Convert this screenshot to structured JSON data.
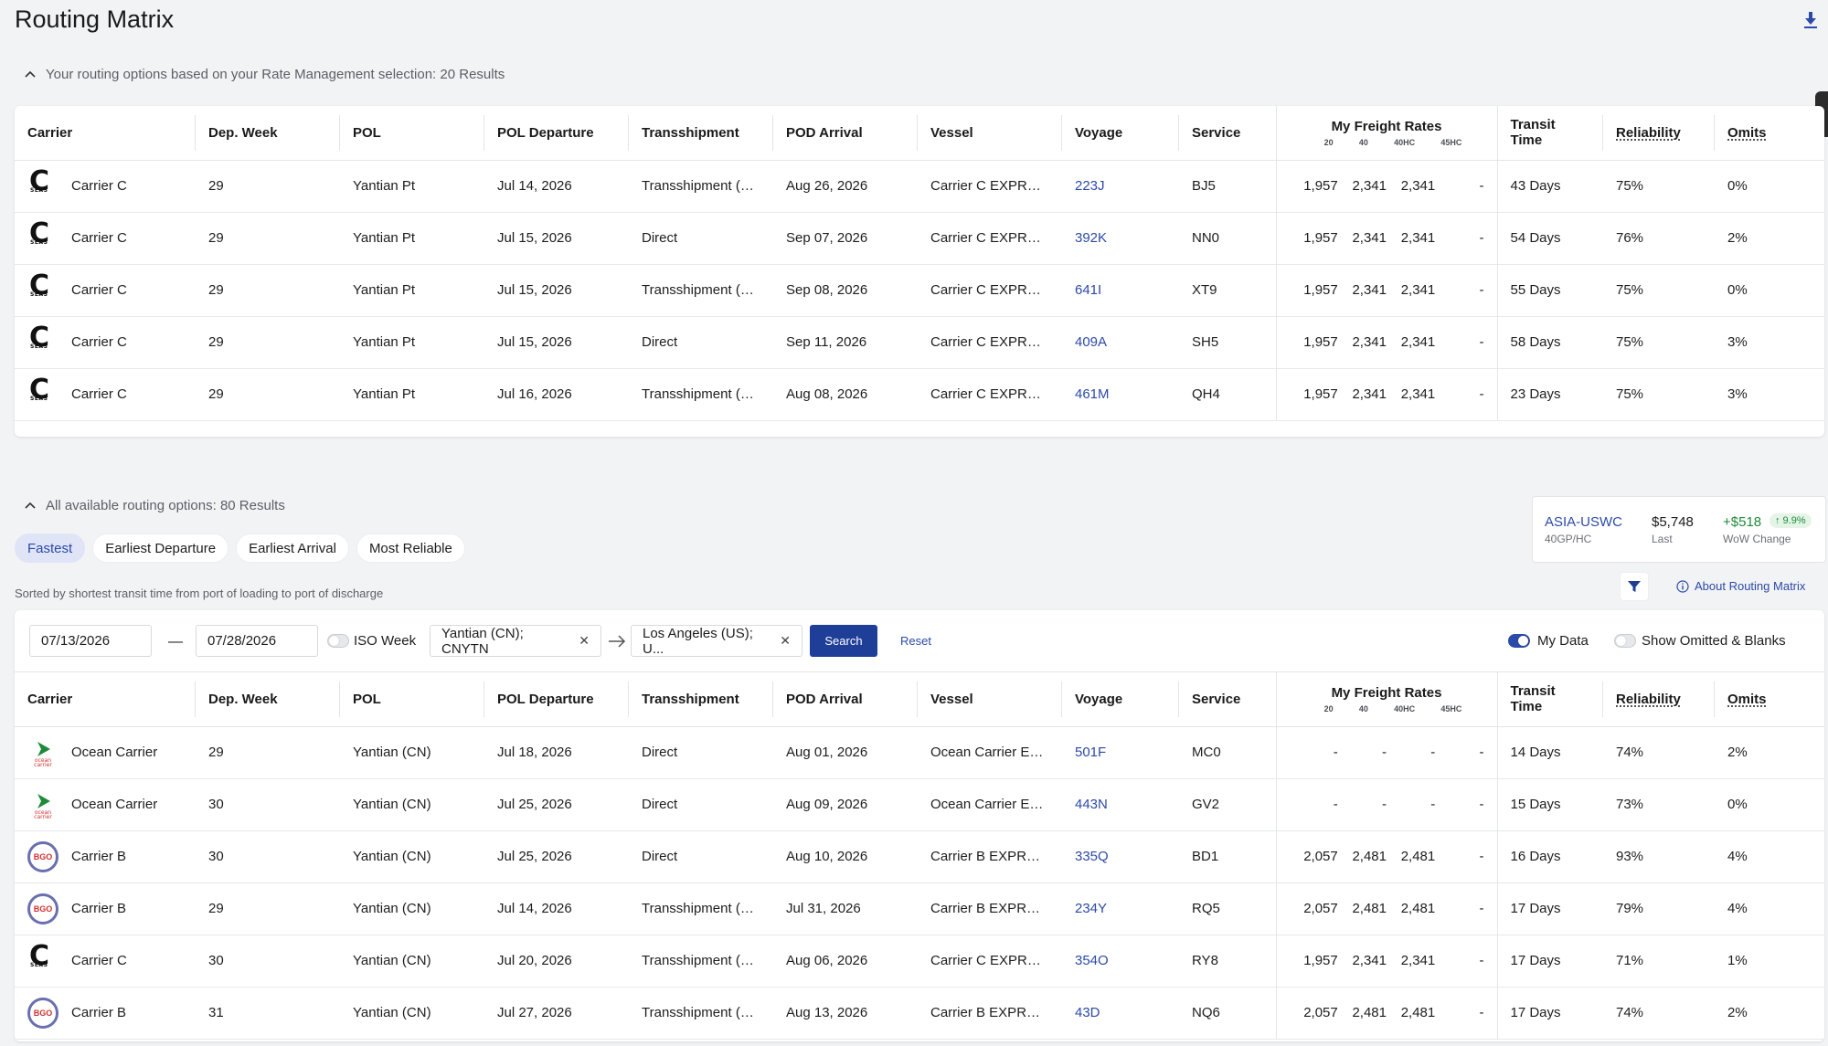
{
  "page_title": "Routing Matrix",
  "section1": {
    "summary": "Your routing options based on your Rate Management selection: 20 Results"
  },
  "section2": {
    "summary": "All available routing options: 80 Results"
  },
  "columns": {
    "carrier": "Carrier",
    "dep_week": "Dep. Week",
    "pol": "POL",
    "pol_departure": "POL Departure",
    "transshipment": "Transshipment",
    "pod_arrival": "POD Arrival",
    "vessel": "Vessel",
    "voyage": "Voyage",
    "service": "Service",
    "rates": "My Freight Rates",
    "rate_20": "20",
    "rate_40": "40",
    "rate_40hc": "40HC",
    "rate_45hc": "45HC",
    "transit_time": "Transit Time",
    "reliability": "Reliability",
    "omits": "Omits"
  },
  "table1_rows": [
    {
      "logo": "c-seas-logo",
      "carrier": "Carrier C",
      "dep_week": "29",
      "pol": "Yantian Pt",
      "pol_departure": "Jul 14, 2026",
      "transshipment": "Transshipment (T/...",
      "pod_arrival": "Aug 26, 2026",
      "vessel": "Carrier C EXPRESS",
      "voyage": "223J",
      "service": "BJ5",
      "r20": "1,957",
      "r40": "2,341",
      "r40hc": "2,341",
      "r45hc": "-",
      "transit": "43 Days",
      "reliability": "75%",
      "omits": "0%"
    },
    {
      "logo": "c-seas-logo",
      "carrier": "Carrier C",
      "dep_week": "29",
      "pol": "Yantian Pt",
      "pol_departure": "Jul 15, 2026",
      "transshipment": "Direct",
      "pod_arrival": "Sep 07, 2026",
      "vessel": "Carrier C EXPRESS",
      "voyage": "392K",
      "service": "NN0",
      "r20": "1,957",
      "r40": "2,341",
      "r40hc": "2,341",
      "r45hc": "-",
      "transit": "54 Days",
      "reliability": "76%",
      "omits": "2%"
    },
    {
      "logo": "c-seas-logo",
      "carrier": "Carrier C",
      "dep_week": "29",
      "pol": "Yantian Pt",
      "pol_departure": "Jul 15, 2026",
      "transshipment": "Transshipment (T/...",
      "pod_arrival": "Sep 08, 2026",
      "vessel": "Carrier C EXPRESS",
      "voyage": "641I",
      "service": "XT9",
      "r20": "1,957",
      "r40": "2,341",
      "r40hc": "2,341",
      "r45hc": "-",
      "transit": "55 Days",
      "reliability": "75%",
      "omits": "0%"
    },
    {
      "logo": "c-seas-logo",
      "carrier": "Carrier C",
      "dep_week": "29",
      "pol": "Yantian Pt",
      "pol_departure": "Jul 15, 2026",
      "transshipment": "Direct",
      "pod_arrival": "Sep 11, 2026",
      "vessel": "Carrier C EXPRESS",
      "voyage": "409A",
      "service": "SH5",
      "r20": "1,957",
      "r40": "2,341",
      "r40hc": "2,341",
      "r45hc": "-",
      "transit": "58 Days",
      "reliability": "75%",
      "omits": "3%"
    },
    {
      "logo": "c-seas-logo",
      "carrier": "Carrier C",
      "dep_week": "29",
      "pol": "Yantian Pt",
      "pol_departure": "Jul 16, 2026",
      "transshipment": "Transshipment (T/...",
      "pod_arrival": "Aug 08, 2026",
      "vessel": "Carrier C EXPRESS",
      "voyage": "461M",
      "service": "QH4",
      "r20": "1,957",
      "r40": "2,341",
      "r40hc": "2,341",
      "r45hc": "-",
      "transit": "23 Days",
      "reliability": "75%",
      "omits": "3%"
    }
  ],
  "tabs": [
    "Fastest",
    "Earliest Departure",
    "Earliest Arrival",
    "Most Reliable"
  ],
  "sorted_note": "Sorted by shortest transit time from port of loading to port of discharge",
  "market": {
    "lane": "ASIA-USWC",
    "lane_sub": "40GP/HC",
    "last": "$5,748",
    "last_sub": "Last",
    "change": "+$518",
    "change_pct": "↑ 9.9%",
    "change_sub": "WoW Change"
  },
  "about_link": "About Routing Matrix",
  "search": {
    "date_from": "07/13/2026",
    "date_to": "07/28/2026",
    "dash": "—",
    "iso_week": "ISO Week",
    "origin": "Yantian (CN); CNYTN",
    "destination": "Los Angeles (US); U...",
    "search_btn": "Search",
    "reset": "Reset",
    "my_data": "My Data",
    "show_omitted": "Show Omitted & Blanks"
  },
  "table2_rows": [
    {
      "logo": "ocean-carrier-logo",
      "carrier": "Ocean Carrier",
      "dep_week": "29",
      "pol": "Yantian (CN)",
      "pol_departure": "Jul 18, 2026",
      "transshipment": "Direct",
      "pod_arrival": "Aug 01, 2026",
      "vessel": "Ocean Carrier EXP...",
      "voyage": "501F",
      "service": "MC0",
      "r20": "-",
      "r40": "-",
      "r40hc": "-",
      "r45hc": "-",
      "transit": "14 Days",
      "reliability": "74%",
      "omits": "2%"
    },
    {
      "logo": "ocean-carrier-logo",
      "carrier": "Ocean Carrier",
      "dep_week": "30",
      "pol": "Yantian (CN)",
      "pol_departure": "Jul 25, 2026",
      "transshipment": "Direct",
      "pod_arrival": "Aug 09, 2026",
      "vessel": "Ocean Carrier EXP...",
      "voyage": "443N",
      "service": "GV2",
      "r20": "-",
      "r40": "-",
      "r40hc": "-",
      "r45hc": "-",
      "transit": "15 Days",
      "reliability": "73%",
      "omits": "0%"
    },
    {
      "logo": "bgo-logo",
      "carrier": "Carrier B",
      "dep_week": "30",
      "pol": "Yantian (CN)",
      "pol_departure": "Jul 25, 2026",
      "transshipment": "Direct",
      "pod_arrival": "Aug 10, 2026",
      "vessel": "Carrier B EXPRESS",
      "voyage": "335Q",
      "service": "BD1",
      "r20": "2,057",
      "r40": "2,481",
      "r40hc": "2,481",
      "r45hc": "-",
      "transit": "16 Days",
      "reliability": "93%",
      "omits": "4%"
    },
    {
      "logo": "bgo-logo",
      "carrier": "Carrier B",
      "dep_week": "29",
      "pol": "Yantian (CN)",
      "pol_departure": "Jul 14, 2026",
      "transshipment": "Transshipment (T/...",
      "pod_arrival": "Jul 31, 2026",
      "vessel": "Carrier B EXPRESS",
      "voyage": "234Y",
      "service": "RQ5",
      "r20": "2,057",
      "r40": "2,481",
      "r40hc": "2,481",
      "r45hc": "-",
      "transit": "17 Days",
      "reliability": "79%",
      "omits": "4%"
    },
    {
      "logo": "c-seas-logo",
      "carrier": "Carrier C",
      "dep_week": "30",
      "pol": "Yantian (CN)",
      "pol_departure": "Jul 20, 2026",
      "transshipment": "Transshipment (T/...",
      "pod_arrival": "Aug 06, 2026",
      "vessel": "Carrier C EXPRESS",
      "voyage": "354O",
      "service": "RY8",
      "r20": "1,957",
      "r40": "2,341",
      "r40hc": "2,341",
      "r45hc": "-",
      "transit": "17 Days",
      "reliability": "71%",
      "omits": "1%"
    },
    {
      "logo": "bgo-logo",
      "carrier": "Carrier B",
      "dep_week": "31",
      "pol": "Yantian (CN)",
      "pol_departure": "Jul 27, 2026",
      "transshipment": "Transshipment (T/...",
      "pod_arrival": "Aug 13, 2026",
      "vessel": "Carrier B EXPRESS",
      "voyage": "43D",
      "service": "NQ6",
      "r20": "2,057",
      "r40": "2,481",
      "r40hc": "2,481",
      "r45hc": "-",
      "transit": "17 Days",
      "reliability": "74%",
      "omits": "2%"
    }
  ]
}
